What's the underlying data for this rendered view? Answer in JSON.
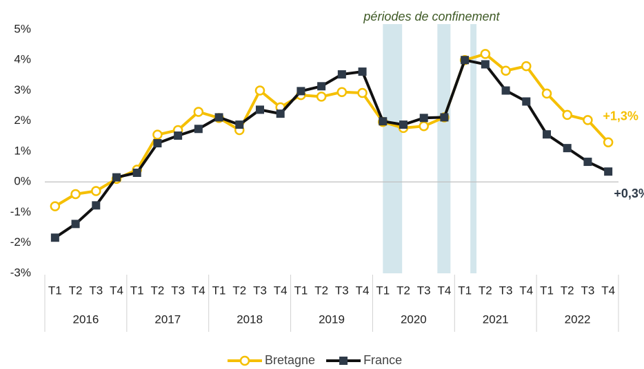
{
  "chart_data": {
    "type": "line",
    "annotations": [
      "périodes de confinement"
    ],
    "categories": [
      "T1",
      "T2",
      "T3",
      "T4",
      "T1",
      "T2",
      "T3",
      "T4",
      "T1",
      "T2",
      "T3",
      "T4",
      "T1",
      "T2",
      "T3",
      "T4",
      "T1",
      "T2",
      "T3",
      "T4",
      "T1",
      "T2",
      "T3",
      "T4",
      "T1",
      "T2",
      "T3",
      "T4"
    ],
    "category_groups": [
      "2016",
      "2017",
      "2018",
      "2019",
      "2020",
      "2021",
      "2022"
    ],
    "shaded_periods": [
      [
        16,
        16.94
      ],
      [
        18.66,
        19.3
      ],
      [
        20.27,
        20.57
      ]
    ],
    "shade_color": "#d3e6ec",
    "ylim": [
      -3,
      5
    ],
    "yticks": [
      {
        "value": -3,
        "label": "-3%"
      },
      {
        "value": -2,
        "label": "-2%"
      },
      {
        "value": -1,
        "label": "-1%"
      },
      {
        "value": 0,
        "label": "0%"
      },
      {
        "value": 1,
        "label": "1%"
      },
      {
        "value": 2,
        "label": "2%"
      },
      {
        "value": 3,
        "label": "3%"
      },
      {
        "value": 4,
        "label": "4%"
      },
      {
        "value": 5,
        "label": "5%"
      }
    ],
    "legend": "bottom",
    "series": [
      {
        "name": "Bretagne",
        "color": "#f5bf00",
        "marker": "circle",
        "label_color": "#f5bf00",
        "values": [
          -0.8,
          -0.4,
          -0.3,
          0.1,
          0.4,
          1.55,
          1.7,
          2.3,
          2.1,
          1.7,
          3.0,
          2.45,
          2.85,
          2.8,
          2.95,
          2.92,
          1.97,
          1.77,
          1.83,
          2.12,
          4.0,
          4.2,
          3.65,
          3.8,
          2.9,
          2.2,
          2.03,
          1.3
        ],
        "value_labels": [
          null,
          null,
          null,
          null,
          null,
          null,
          null,
          null,
          null,
          null,
          null,
          null,
          null,
          null,
          null,
          null,
          null,
          null,
          null,
          null,
          null,
          null,
          null,
          null,
          null,
          null,
          null,
          "+1,3%"
        ]
      },
      {
        "name": "France",
        "color": "#111111",
        "marker": "square",
        "marker_color": "#2e3a48",
        "label_color": "#2e3a48",
        "values": [
          -1.83,
          -1.38,
          -0.77,
          0.15,
          0.3,
          1.27,
          1.52,
          1.74,
          2.12,
          1.88,
          2.37,
          2.24,
          2.98,
          3.14,
          3.53,
          3.62,
          1.99,
          1.88,
          2.1,
          2.12,
          4.0,
          3.86,
          3.0,
          2.64,
          1.56,
          1.11,
          0.66,
          0.34
        ],
        "value_labels": [
          null,
          null,
          null,
          null,
          null,
          null,
          null,
          null,
          null,
          null,
          null,
          null,
          null,
          null,
          null,
          null,
          null,
          null,
          null,
          null,
          null,
          null,
          null,
          null,
          null,
          null,
          null,
          "+0,3%"
        ]
      }
    ]
  }
}
